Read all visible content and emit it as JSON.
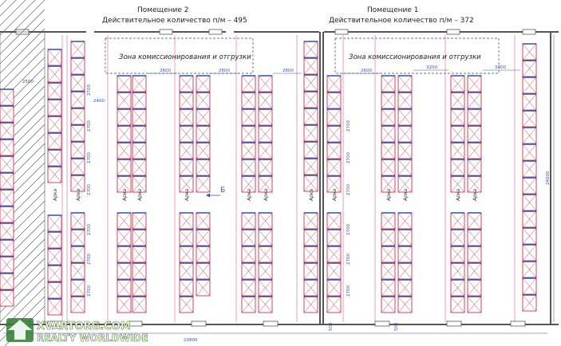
{
  "rooms": [
    {
      "title": "Помещение 2",
      "capacity": "Действительное  количество  п/м – 495"
    },
    {
      "title": "Помещение 1",
      "capacity": "Действительное  количество  п/м – 372"
    }
  ],
  "zones": [
    "Зона комиссионирования и отгрузки",
    "Зона комиссионирования и отгрузки"
  ],
  "arch_label": "Арка",
  "marker_label": "Б",
  "dimensions": {
    "total_width": "20800",
    "total_height": "24000",
    "upper_dims": [
      "2600",
      "2600",
      "2600",
      "2600",
      "3200",
      "3300"
    ],
    "side_2400": "2400",
    "side_2500": "2500",
    "bay_2700": "2700",
    "bottom_dims": [
      "500",
      "500"
    ]
  },
  "colors": {
    "rack_blue": "#2f4fb5",
    "rack_red": "#c8324a",
    "aisle_pink": "#e05a9a",
    "wall": "#555555"
  },
  "watermark": {
    "line1": "XVARTORG.COM",
    "line2": "REALTY WORLDWIDE"
  }
}
